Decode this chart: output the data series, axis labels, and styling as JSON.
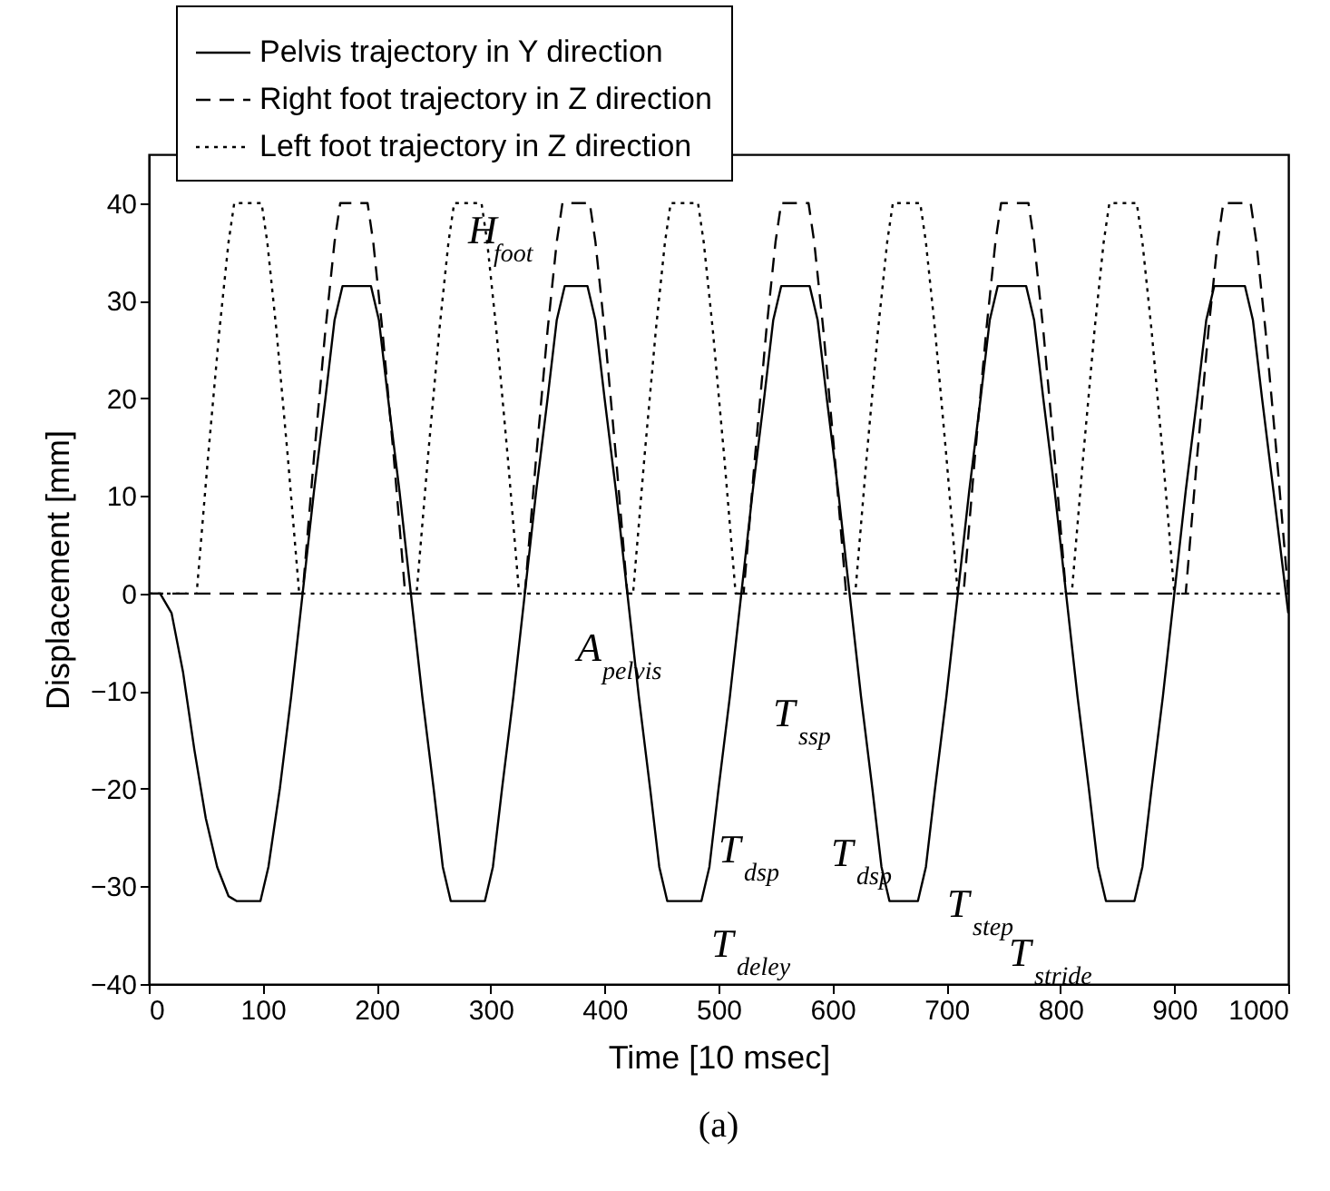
{
  "chart_data": {
    "type": "line",
    "xlabel": "Time [10 msec]",
    "ylabel": "Displacement [mm]",
    "xlim": [
      0,
      1000
    ],
    "ylim": [
      -40,
      45
    ],
    "xticks": [
      0,
      100,
      200,
      300,
      400,
      500,
      600,
      700,
      800,
      900,
      {
        "value": 1000,
        "label": "1000"
      }
    ],
    "yticks": [
      -40,
      -30,
      -20,
      -10,
      0,
      10,
      20,
      30,
      40
    ],
    "grid": false,
    "legend": "top left",
    "marker": "none",
    "series": [
      {
        "name": "Pelvis trajectory in Y direction",
        "color": "#000000",
        "line_style": "solid",
        "x": [
          0,
          10,
          20,
          30,
          40,
          50,
          60,
          70,
          77,
          98,
          105,
          115,
          125,
          135,
          145,
          155,
          163,
          170,
          195,
          202,
          210,
          220,
          230,
          240,
          250,
          258,
          265,
          295,
          302,
          310,
          320,
          330,
          340,
          350,
          358,
          365,
          385,
          392,
          400,
          410,
          420,
          430,
          440,
          448,
          455,
          485,
          492,
          500,
          510,
          520,
          530,
          540,
          548,
          555,
          580,
          587,
          595,
          605,
          615,
          625,
          635,
          643,
          650,
          675,
          682,
          690,
          700,
          710,
          720,
          730,
          738,
          745,
          770,
          777,
          785,
          795,
          805,
          815,
          825,
          833,
          840,
          865,
          872,
          880,
          890,
          900,
          910,
          920,
          928,
          935,
          962,
          969,
          977,
          987,
          1000
        ],
        "values": [
          0,
          0,
          -2,
          -8,
          -16,
          -23,
          -28,
          -31,
          -31.5,
          -31.5,
          -28,
          -20,
          -10.5,
          0,
          10.5,
          20,
          28,
          31.5,
          31.5,
          28,
          20,
          10.5,
          0,
          -10.5,
          -20,
          -28,
          -31.5,
          -31.5,
          -28,
          -20,
          -10.5,
          0,
          10.5,
          20,
          28,
          31.5,
          31.5,
          28,
          20,
          10.5,
          0,
          -10.5,
          -20,
          -28,
          -31.5,
          -31.5,
          -28,
          -20,
          -10.5,
          0,
          10.5,
          20,
          28,
          31.5,
          31.5,
          28,
          20,
          10.5,
          0,
          -10.5,
          -20,
          -28,
          -31.5,
          -31.5,
          -28,
          -20,
          -10.5,
          0,
          10.5,
          20,
          28,
          31.5,
          31.5,
          28,
          20,
          10.5,
          0,
          -10.5,
          -20,
          -28,
          -31.5,
          -31.5,
          -28,
          -20,
          -10.5,
          0,
          10.5,
          20,
          28,
          31.5,
          31.5,
          28,
          20,
          10.5,
          -2
        ]
      },
      {
        "name": "Right foot trajectory in Z direction",
        "color": "#000000",
        "line_style": "dashed",
        "x": [
          0,
          135,
          145,
          155,
          163,
          168,
          192,
          197,
          205,
          215,
          225,
          330,
          340,
          350,
          358,
          363,
          387,
          392,
          400,
          410,
          420,
          522,
          532,
          542,
          550,
          555,
          579,
          584,
          592,
          602,
          612,
          715,
          725,
          735,
          743,
          748,
          772,
          777,
          785,
          795,
          805,
          910,
          920,
          930,
          938,
          943,
          967,
          972,
          980,
          990,
          1000
        ],
        "values": [
          0,
          0,
          14,
          27,
          36,
          40,
          40,
          36,
          27,
          14,
          0,
          0,
          14,
          27,
          36,
          40,
          40,
          36,
          27,
          14,
          0,
          0,
          14,
          27,
          36,
          40,
          40,
          36,
          27,
          14,
          0,
          0,
          14,
          27,
          36,
          40,
          40,
          36,
          27,
          14,
          0,
          0,
          14,
          27,
          36,
          40,
          40,
          36,
          27,
          14,
          0
        ]
      },
      {
        "name": "Left foot trajectory in Z direction",
        "color": "#000000",
        "line_style": "dotted",
        "x": [
          0,
          42,
          52,
          62,
          70,
          75,
          99,
          104,
          112,
          122,
          132,
          235,
          245,
          255,
          263,
          268,
          292,
          297,
          305,
          315,
          325,
          425,
          435,
          445,
          453,
          458,
          482,
          487,
          495,
          505,
          515,
          620,
          630,
          640,
          648,
          653,
          677,
          682,
          690,
          700,
          710,
          810,
          820,
          830,
          838,
          843,
          867,
          872,
          880,
          890,
          900,
          1000
        ],
        "values": [
          0,
          0,
          14,
          27,
          36,
          40,
          40,
          36,
          27,
          14,
          0,
          0,
          14,
          27,
          36,
          40,
          40,
          36,
          27,
          14,
          0,
          0,
          14,
          27,
          36,
          40,
          40,
          36,
          27,
          14,
          0,
          0,
          14,
          27,
          36,
          40,
          40,
          36,
          27,
          14,
          0,
          0,
          14,
          27,
          36,
          40,
          40,
          36,
          27,
          14,
          0,
          0
        ]
      }
    ],
    "annotations": [
      "H$_{foot}$",
      "A$_{pelvis}$",
      "T$_{ssp}$",
      "T$_{dsp}$",
      "T$_{dsp}$",
      "T$_{deley}$",
      "T$_{step}$",
      "T$_{stride}$",
      "(a)"
    ]
  }
}
